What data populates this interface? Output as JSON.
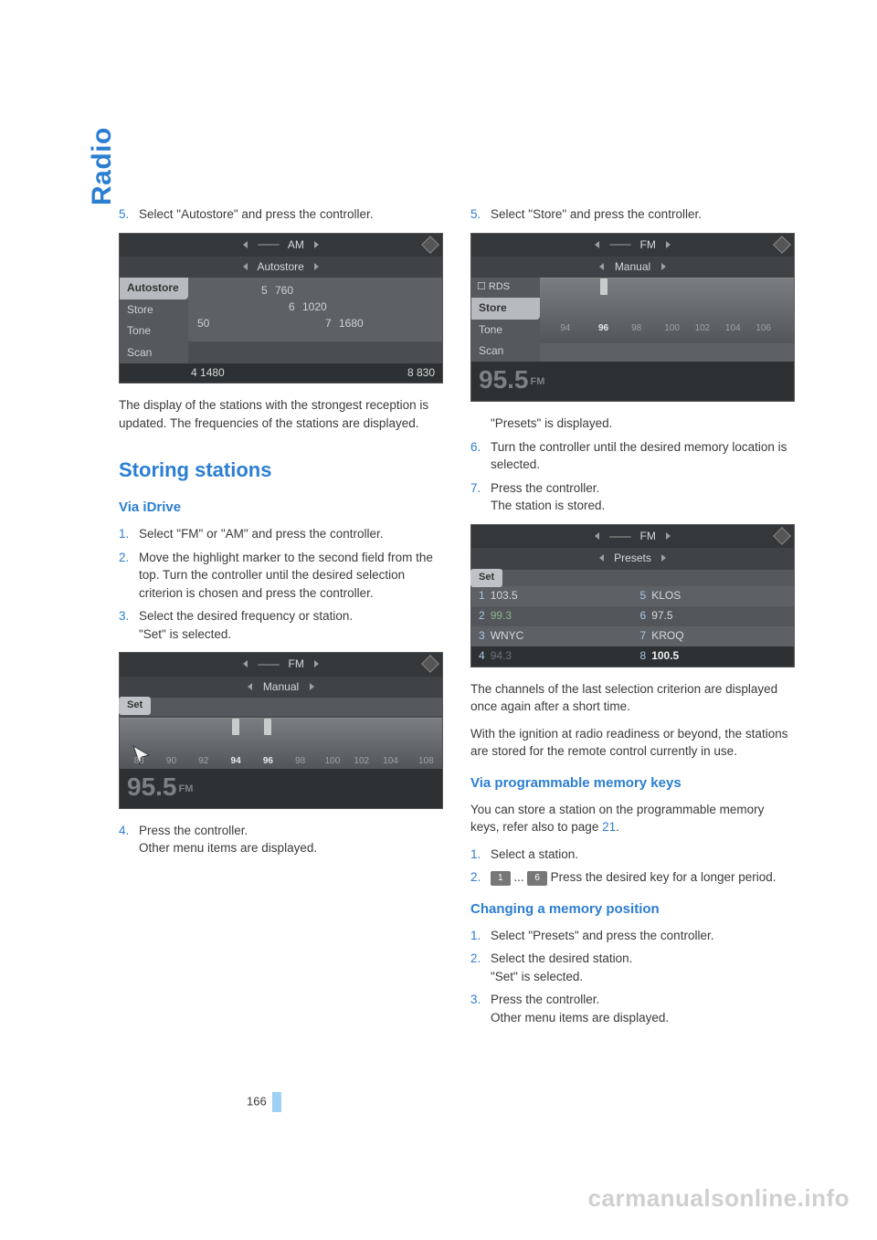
{
  "side_label": "Radio",
  "page_number": "166",
  "watermark": "carmanualsonline.info",
  "colors": {
    "accent": "#2b7ed1",
    "body_text": "#3a3a3a",
    "watermark": "#cfcfcf",
    "page_bar": "#9fd0f5",
    "ss_bg": "#4a4e53",
    "ss_dark": "#2e3133",
    "ss_side": "#55595d",
    "ss_sel": "#b7bbbf"
  },
  "left": {
    "step5": {
      "num": "5.",
      "text": "Select \"Autostore\" and press the controller."
    },
    "after_ss1": "The display of the stations with the strongest reception is updated. The frequencies of the stations are displayed.",
    "h2": "Storing stations",
    "h3a": "Via iDrive",
    "s1": {
      "num": "1.",
      "text": "Select \"FM\" or \"AM\" and press the controller."
    },
    "s2": {
      "num": "2.",
      "text": "Move the highlight marker to the second field from the top. Turn the controller until the desired selection criterion is chosen and press the controller."
    },
    "s3": {
      "num": "3.",
      "text": "Select the desired frequency or station.",
      "text2": "\"Set\" is selected."
    },
    "s4": {
      "num": "4.",
      "text": "Press the controller.",
      "text2": "Other menu items are displayed."
    }
  },
  "right": {
    "step5": {
      "num": "5.",
      "text": "Select \"Store\" and press the controller."
    },
    "after5": "\"Presets\" is displayed.",
    "s6": {
      "num": "6.",
      "text": "Turn the controller until the desired memory location is selected."
    },
    "s7": {
      "num": "7.",
      "text": "Press the controller.",
      "text2": "The station is stored."
    },
    "after_ss3a": "The channels of the last selection criterion are displayed once again after a short time.",
    "after_ss3b": "With the ignition at radio readiness or beyond, the stations are stored for the remote control currently in use.",
    "h3b": "Via programmable memory keys",
    "pmk_intro_a": "You can store a station on the programmable memory keys, refer also to page ",
    "pmk_intro_link": "21",
    "pmk_intro_b": ".",
    "pmk1": {
      "num": "1.",
      "text": "Select a station."
    },
    "pmk2": {
      "num": "2.",
      "btn1": "1",
      "dots": " ... ",
      "btn2": "6",
      "text": " Press the desired key for a longer period."
    },
    "h3c": "Changing a memory position",
    "c1": {
      "num": "1.",
      "text": "Select \"Presets\" and press the controller."
    },
    "c2": {
      "num": "2.",
      "text": "Select the desired station.",
      "text2": "\"Set\" is selected."
    },
    "c3": {
      "num": "3.",
      "text": "Press the controller.",
      "text2": "Other menu items are displayed."
    }
  },
  "ss1": {
    "band": "AM",
    "sub": "Autostore",
    "side": [
      "Autostore",
      "Store",
      "Tone",
      "Scan"
    ],
    "side_sel": 0,
    "freqs": {
      "5": "760",
      "6": "1020",
      "7": "1680"
    },
    "bottom_left_n": "4",
    "bottom_left_v": "1480",
    "bottom_right_n": "8",
    "bottom_right_v": "830",
    "extra50": "50"
  },
  "ss2": {
    "band": "FM",
    "sub": "Manual",
    "set": "Set",
    "ticks": [
      {
        "v": "88",
        "pct": 6,
        "hi": false
      },
      {
        "v": "90",
        "pct": 16,
        "hi": false
      },
      {
        "v": "92",
        "pct": 26,
        "hi": false
      },
      {
        "v": "94",
        "pct": 36,
        "hi": true
      },
      {
        "v": "96",
        "pct": 46,
        "hi": true
      },
      {
        "v": "98",
        "pct": 56,
        "hi": false
      },
      {
        "v": "100",
        "pct": 66,
        "hi": false
      },
      {
        "v": "102",
        "pct": 75,
        "hi": false
      },
      {
        "v": "104",
        "pct": 84,
        "hi": false
      },
      {
        "v": "108",
        "pct": 95,
        "hi": false
      }
    ],
    "markers": [
      36,
      46
    ],
    "big": "95.5",
    "big_suffix": "FM"
  },
  "ss3": {
    "band": "FM",
    "sub": "Manual",
    "side_chk": "RDS",
    "side": [
      "Store",
      "Tone",
      "Scan"
    ],
    "side_sel": 0,
    "ticks": [
      {
        "v": "94",
        "pct": 10,
        "hi": false
      },
      {
        "v": "96",
        "pct": 25,
        "hi": true
      },
      {
        "v": "98",
        "pct": 38,
        "hi": false
      },
      {
        "v": "100",
        "pct": 52,
        "hi": false
      },
      {
        "v": "102",
        "pct": 64,
        "hi": false
      },
      {
        "v": "104",
        "pct": 76,
        "hi": false
      },
      {
        "v": "106",
        "pct": 88,
        "hi": false
      }
    ],
    "markers": [
      25
    ],
    "big": "95.5",
    "big_suffix": "FM"
  },
  "ss4": {
    "band": "FM",
    "sub": "Presets",
    "set": "Set",
    "rows": [
      {
        "ln": "1",
        "lv": "103.5",
        "rn": "5",
        "rv": "KLOS"
      },
      {
        "ln": "2",
        "lv": "99.3",
        "rn": "6",
        "rv": "97.5"
      },
      {
        "ln": "3",
        "lv": "WNYC",
        "rn": "7",
        "rv": "KROQ"
      }
    ],
    "bot": {
      "ln": "4",
      "lv": "94.3",
      "rn": "8",
      "rv": "100.5"
    }
  }
}
